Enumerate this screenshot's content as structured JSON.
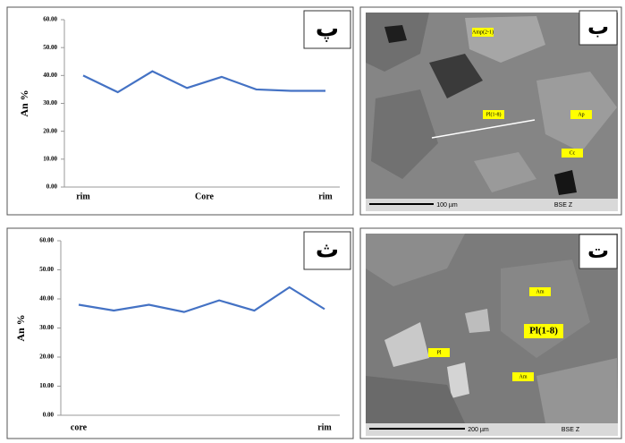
{
  "chart_data": [
    {
      "type": "line",
      "panel": "پ",
      "ylabel": "An %",
      "x": [
        1,
        2,
        3,
        4,
        5,
        6,
        7,
        8
      ],
      "series": [
        {
          "color": "#4472c4",
          "values": [
            40,
            34,
            41.5,
            35.5,
            39.5,
            35,
            34.5,
            34.5
          ]
        }
      ],
      "xlim": [
        1,
        8
      ],
      "xticks": [
        {
          "value": 1,
          "label": "rim"
        },
        {
          "value": 4.5,
          "label": "Core"
        },
        {
          "value": 8,
          "label": "rim"
        }
      ],
      "ylim": [
        0,
        60
      ],
      "yticks": [
        {
          "value": 0,
          "label": "0.00"
        },
        {
          "value": 10,
          "label": "10.00"
        },
        {
          "value": 20,
          "label": "20.00"
        },
        {
          "value": 30,
          "label": "30.00"
        },
        {
          "value": 40,
          "label": "40.00"
        },
        {
          "value": 50,
          "label": "50.00"
        },
        {
          "value": 60,
          "label": "60.00"
        }
      ],
      "grid": false
    },
    {
      "type": "line",
      "panel": "ث",
      "ylabel": "An %",
      "x": [
        1,
        2,
        3,
        4,
        5,
        6,
        7,
        8
      ],
      "series": [
        {
          "color": "#4472c4",
          "values": [
            38,
            36,
            38,
            35.5,
            39.5,
            36,
            44,
            36.5
          ]
        }
      ],
      "xlim": [
        1,
        8
      ],
      "xticks": [
        {
          "value": 1,
          "label": "core"
        },
        {
          "value": 8,
          "label": "rim"
        }
      ],
      "ylim": [
        0,
        60
      ],
      "yticks": [
        {
          "value": 0,
          "label": "0.00"
        },
        {
          "value": 10,
          "label": "10.00"
        },
        {
          "value": 20,
          "label": "20.00"
        },
        {
          "value": 30,
          "label": "30.00"
        },
        {
          "value": 40,
          "label": "40.00"
        },
        {
          "value": 50,
          "label": "50.00"
        },
        {
          "value": 60,
          "label": "60.00"
        }
      ],
      "grid": false
    }
  ],
  "images": [
    {
      "panel": "ب",
      "annotations": [
        "Amp(2-1)",
        "Pl(1-8)",
        "Ap",
        "Cc"
      ],
      "scale": "100 µm",
      "detector": "BSE Z"
    },
    {
      "panel": "ت",
      "annotations": [
        "Am",
        "Pl(1-8)",
        "Pl",
        "Am"
      ],
      "scale": "200 µm",
      "detector": "BSE Z"
    }
  ]
}
